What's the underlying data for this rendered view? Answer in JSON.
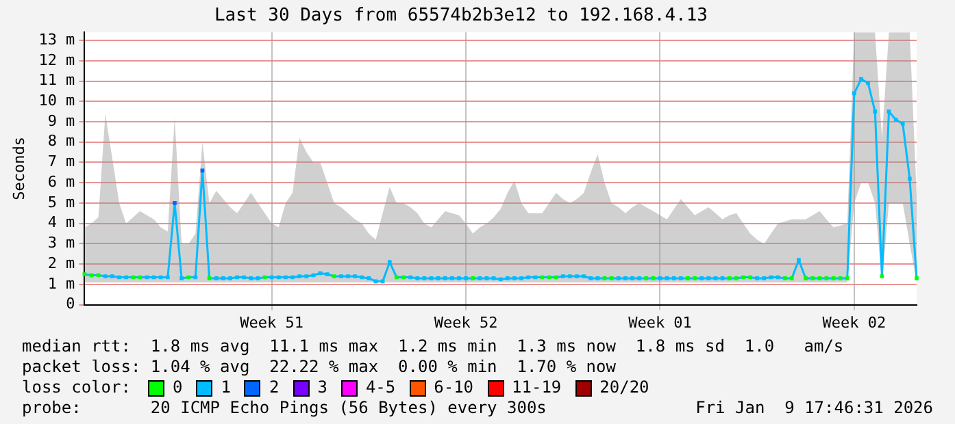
{
  "chart_data": {
    "type": "line",
    "title": "Last 30 Days from 65574b2b3e12 to 192.168.4.13",
    "ylabel": "Seconds",
    "categories": [
      null,
      null,
      null,
      null,
      null,
      null,
      null,
      null,
      null,
      null,
      null,
      null,
      null,
      null,
      null,
      null,
      null,
      null,
      null,
      null,
      null,
      null,
      null,
      null,
      null,
      null,
      null,
      "Week 51",
      null,
      null,
      null,
      null,
      null,
      null,
      null,
      null,
      null,
      null,
      null,
      null,
      null,
      null,
      null,
      null,
      null,
      null,
      null,
      null,
      null,
      null,
      null,
      null,
      null,
      null,
      null,
      "Week 52",
      null,
      null,
      null,
      null,
      null,
      null,
      null,
      null,
      null,
      null,
      null,
      null,
      null,
      null,
      null,
      null,
      null,
      null,
      null,
      null,
      null,
      null,
      null,
      null,
      null,
      null,
      null,
      "Week 01",
      null,
      null,
      null,
      null,
      null,
      null,
      null,
      null,
      null,
      null,
      null,
      null,
      null,
      null,
      null,
      null,
      null,
      null,
      null,
      null,
      null,
      null,
      null,
      null,
      null,
      null,
      null,
      "Week 02",
      null,
      null,
      null,
      null,
      null,
      null,
      null,
      null,
      null
    ],
    "ylim": [
      0,
      13.4
    ],
    "yticks": [
      {
        "value": 0,
        "label": "0"
      },
      {
        "value": 1,
        "label": "1 m"
      },
      {
        "value": 2,
        "label": "2 m"
      },
      {
        "value": 3,
        "label": "3 m"
      },
      {
        "value": 4,
        "label": "4 m"
      },
      {
        "value": 5,
        "label": "5 m"
      },
      {
        "value": 6,
        "label": "6 m"
      },
      {
        "value": 7,
        "label": "7 m"
      },
      {
        "value": 8,
        "label": "8 m"
      },
      {
        "value": 9,
        "label": "9 m"
      },
      {
        "value": 10,
        "label": "10 m"
      },
      {
        "value": 11,
        "label": "11 m"
      },
      {
        "value": 12,
        "label": "12 m"
      },
      {
        "value": 13,
        "label": "13 m"
      }
    ],
    "grid": true,
    "marker": "square",
    "series": [
      {
        "color": "#00bbff",
        "values": [
          1.5,
          1.45,
          1.45,
          1.4,
          1.4,
          1.35,
          1.35,
          1.35,
          1.35,
          1.35,
          1.35,
          1.35,
          1.35,
          5.0,
          1.3,
          1.35,
          1.35,
          6.6,
          1.3,
          1.3,
          1.3,
          1.3,
          1.35,
          1.35,
          1.3,
          1.3,
          1.35,
          1.35,
          1.35,
          1.35,
          1.35,
          1.4,
          1.4,
          1.45,
          1.55,
          1.5,
          1.4,
          1.4,
          1.4,
          1.4,
          1.35,
          1.3,
          1.15,
          1.15,
          2.1,
          1.35,
          1.35,
          1.35,
          1.3,
          1.3,
          1.3,
          1.3,
          1.3,
          1.3,
          1.3,
          1.3,
          1.3,
          1.3,
          1.3,
          1.3,
          1.25,
          1.3,
          1.3,
          1.3,
          1.35,
          1.35,
          1.35,
          1.35,
          1.35,
          1.4,
          1.4,
          1.4,
          1.4,
          1.3,
          1.3,
          1.3,
          1.3,
          1.3,
          1.3,
          1.3,
          1.3,
          1.3,
          1.3,
          1.3,
          1.3,
          1.3,
          1.3,
          1.3,
          1.3,
          1.3,
          1.3,
          1.3,
          1.3,
          1.3,
          1.3,
          1.35,
          1.35,
          1.3,
          1.3,
          1.35,
          1.35,
          1.3,
          1.3,
          2.2,
          1.3,
          1.3,
          1.3,
          1.3,
          1.3,
          1.3,
          1.3,
          10.4,
          11.1,
          10.9,
          9.5,
          1.4,
          9.5,
          9.1,
          8.9,
          6.2,
          1.3
        ],
        "colors": [
          "#00ff00",
          "#00ff00",
          "#00ff00",
          "#00bbff",
          "#00bbff",
          "#00bbff",
          "#00bbff",
          "#00ff00",
          "#00ff00",
          "#00bbff",
          "#00bbff",
          "#00bbff",
          "#00bbff",
          "#0066ff",
          "#00bbff",
          "#00ff00",
          "#00bbff",
          "#0066ff",
          "#00ff00",
          "#00bbff",
          "#00bbff",
          "#00bbff",
          "#00bbff",
          "#00bbff",
          "#00bbff",
          "#00bbff",
          "#00ff00",
          "#00bbff",
          "#00bbff",
          "#00bbff",
          "#00bbff",
          "#00bbff",
          "#00bbff",
          "#00bbff",
          "#00bbff",
          "#00bbff",
          "#00ff00",
          "#00bbff",
          "#00bbff",
          "#00bbff",
          "#00bbff",
          "#00bbff",
          "#00bbff",
          "#00bbff",
          "#00bbff",
          "#00ff00",
          "#00ff00",
          "#00bbff",
          "#00bbff",
          "#00bbff",
          "#00bbff",
          "#00bbff",
          "#00bbff",
          "#00bbff",
          "#00bbff",
          "#00bbff",
          "#00ff00",
          "#00bbff",
          "#00bbff",
          "#00bbff",
          "#00bbff",
          "#00bbff",
          "#00bbff",
          "#00bbff",
          "#00bbff",
          "#00bbff",
          "#00ff00",
          "#00ff00",
          "#00ff00",
          "#00bbff",
          "#00bbff",
          "#00bbff",
          "#00bbff",
          "#00bbff",
          "#00bbff",
          "#00ff00",
          "#00ff00",
          "#00bbff",
          "#00bbff",
          "#00bbff",
          "#00bbff",
          "#00ff00",
          "#00ff00",
          "#00bbff",
          "#00bbff",
          "#00bbff",
          "#00bbff",
          "#00ff00",
          "#00ff00",
          "#00bbff",
          "#00bbff",
          "#00bbff",
          "#00bbff",
          "#00ff00",
          "#00ff00",
          "#00ff00",
          "#00ff00",
          "#00bbff",
          "#00bbff",
          "#00bbff",
          "#00bbff",
          "#00ff00",
          "#00ff00",
          "#00bbff",
          "#00ff00",
          "#00ff00",
          "#00ff00",
          "#00ff00",
          "#00ff00",
          "#00ff00",
          "#00ff00",
          "#00bbff",
          "#00bbff",
          "#00bbff",
          "#00bbff",
          "#00ff00",
          "#00bbff",
          "#00bbff",
          "#00bbff",
          "#00bbff",
          "#00ff00"
        ],
        "lower": [
          1.1,
          1.1,
          1.1,
          1.1,
          1.1,
          1.1,
          1.1,
          1.1,
          1.1,
          1.1,
          1.1,
          1.1,
          1.1,
          1.1,
          1.1,
          1.1,
          1.1,
          1.1,
          1.1,
          1.1,
          1.1,
          1.1,
          1.1,
          1.1,
          1.1,
          1.1,
          1.1,
          1.1,
          1.1,
          1.1,
          1.1,
          1.1,
          1.1,
          1.1,
          1.1,
          1.1,
          1.1,
          1.1,
          1.1,
          1.1,
          1.1,
          1.1,
          1.1,
          1.1,
          1.1,
          1.1,
          1.1,
          1.1,
          1.1,
          1.1,
          1.1,
          1.1,
          1.1,
          1.1,
          1.1,
          1.1,
          1.1,
          1.1,
          1.1,
          1.1,
          1.1,
          1.1,
          1.1,
          1.1,
          1.1,
          1.1,
          1.1,
          1.1,
          1.1,
          1.1,
          1.1,
          1.1,
          1.1,
          1.1,
          1.1,
          1.1,
          1.1,
          1.1,
          1.1,
          1.1,
          1.1,
          1.1,
          1.1,
          1.1,
          1.1,
          1.1,
          1.1,
          1.1,
          1.1,
          1.1,
          1.1,
          1.1,
          1.1,
          1.1,
          1.1,
          1.1,
          1.1,
          1.1,
          1.1,
          1.1,
          1.1,
          1.1,
          1.1,
          1.1,
          1.1,
          1.1,
          1.1,
          1.1,
          1.1,
          1.1,
          1.1,
          5,
          6,
          6,
          5,
          1.1,
          5,
          5,
          5,
          3,
          1.1
        ],
        "upper": [
          3.8,
          4.0,
          4.3,
          9.4,
          7.2,
          5.0,
          4.0,
          4.3,
          4.6,
          4.4,
          4.2,
          3.8,
          3.6,
          9.2,
          3.0,
          3.0,
          3.5,
          8.0,
          5.0,
          5.6,
          5.2,
          4.8,
          4.5,
          5.0,
          5.5,
          5.0,
          4.5,
          4.0,
          3.8,
          5.0,
          5.5,
          8.2,
          7.5,
          7.0,
          7.0,
          6.0,
          5.0,
          4.8,
          4.5,
          4.2,
          4.0,
          3.5,
          3.2,
          4.5,
          5.8,
          5.0,
          5.0,
          4.8,
          4.5,
          4.0,
          3.8,
          4.2,
          4.6,
          4.5,
          4.4,
          4.0,
          3.5,
          3.8,
          4.0,
          4.3,
          4.7,
          5.5,
          6.1,
          5.0,
          4.5,
          4.5,
          4.5,
          5.0,
          5.5,
          5.2,
          5.0,
          5.2,
          5.5,
          6.5,
          7.4,
          6.0,
          5.0,
          4.8,
          4.5,
          4.8,
          5.0,
          4.8,
          4.6,
          4.4,
          4.2,
          4.7,
          5.2,
          4.8,
          4.4,
          4.6,
          4.8,
          4.5,
          4.2,
          4.4,
          4.5,
          4.0,
          3.5,
          3.2,
          3.0,
          3.5,
          4.0,
          4.1,
          4.2,
          4.2,
          4.2,
          4.4,
          4.6,
          4.2,
          3.8,
          3.9,
          4.0,
          13.4,
          13.4,
          13.4,
          13.4,
          8.2,
          13.4,
          13.4,
          13.4,
          13.4,
          5.4
        ]
      }
    ],
    "annotations": [
      "median rtt:  1.8 ms avg  11.1 ms max  1.2 ms min  1.3 ms now  1.8 ms sd  1.0   am/s",
      "packet loss: 1.04 % avg  22.22 % max  0.00 % min  1.70 % now",
      "loss color:",
      "0",
      "1",
      "2",
      "3",
      "4-5",
      "6-10",
      "11-19",
      "20/20",
      "probe:       20 ICMP Echo Pings (56 Bytes) every 300s",
      "Fri Jan  9 17:46:31 2026"
    ]
  }
}
